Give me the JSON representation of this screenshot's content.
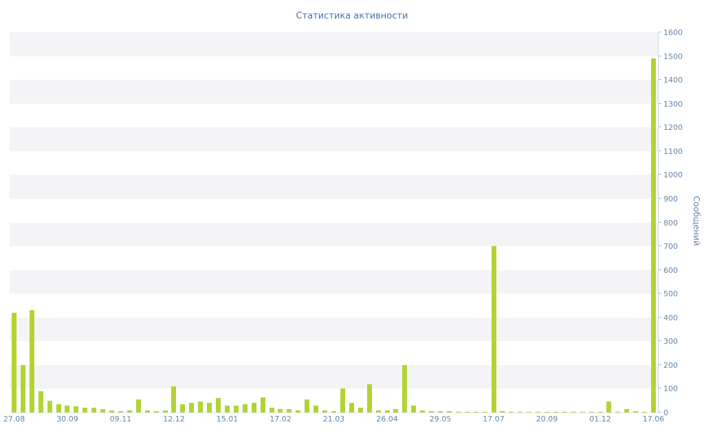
{
  "title": "Статистика активности",
  "y_axis_title": "Сообщений",
  "colors": {
    "bar": "#b3d335",
    "title_text": "#4a72a8",
    "axis_text": "#6684a6",
    "band": "#f4f4f6",
    "axis_line": "#c9d4e0"
  },
  "chart_data": {
    "type": "bar",
    "title": "Статистика активности",
    "xlabel": "",
    "ylabel": "Сообщений",
    "ylim": [
      0,
      1600
    ],
    "ytick_step": 100,
    "yticks": [
      0,
      100,
      200,
      300,
      400,
      500,
      600,
      700,
      800,
      900,
      1000,
      1100,
      1200,
      1300,
      1400,
      1500,
      1600
    ],
    "grid": "alternating-horizontal-bands",
    "legend": "none",
    "x_tick_labels": [
      "27.08",
      "30.09",
      "09.11",
      "12.12",
      "15.01",
      "17.02",
      "21.03",
      "26.04",
      "29.05",
      "17.07",
      "20.09",
      "01.12",
      "17.06"
    ],
    "x_tick_indices": [
      0,
      6,
      12,
      18,
      24,
      30,
      36,
      42,
      48,
      54,
      60,
      66,
      72
    ],
    "values": [
      420,
      200,
      430,
      90,
      50,
      35,
      30,
      25,
      20,
      20,
      15,
      8,
      5,
      8,
      55,
      10,
      5,
      10,
      110,
      35,
      40,
      45,
      40,
      60,
      30,
      30,
      35,
      40,
      65,
      20,
      15,
      15,
      10,
      55,
      30,
      10,
      5,
      100,
      40,
      20,
      120,
      10,
      10,
      15,
      200,
      30,
      10,
      5,
      5,
      5,
      3,
      3,
      3,
      3,
      700,
      5,
      3,
      3,
      2,
      2,
      2,
      2,
      2,
      1,
      2,
      1,
      2,
      45,
      3,
      15,
      5,
      3,
      1490
    ]
  }
}
